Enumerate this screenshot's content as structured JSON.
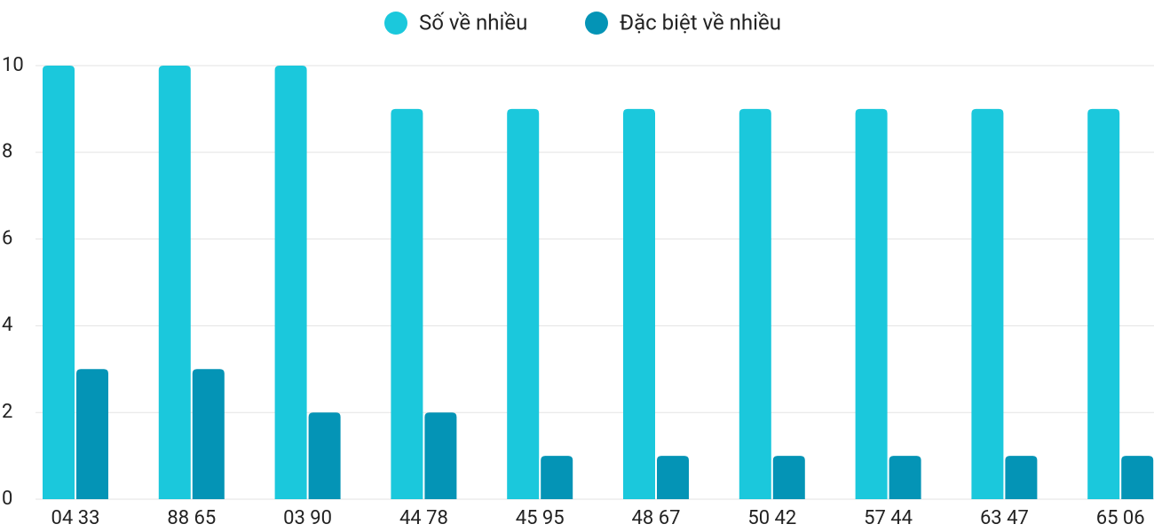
{
  "chart_data": {
    "type": "bar",
    "categories": [
      "04 33",
      "88 65",
      "03 90",
      "44 78",
      "45 95",
      "48 67",
      "50 42",
      "57 44",
      "63 47",
      "65 06"
    ],
    "series": [
      {
        "name": "Số về nhiều",
        "color": "#1bc8dc",
        "values": [
          10,
          10,
          10,
          9,
          9,
          9,
          9,
          9,
          9,
          9
        ]
      },
      {
        "name": "Đặc biệt về nhiều",
        "color": "#0494b6",
        "values": [
          3,
          3,
          2,
          2,
          1,
          1,
          1,
          1,
          1,
          1
        ]
      }
    ],
    "ylim": [
      0,
      10
    ],
    "yticks": [
      0,
      2,
      4,
      6,
      8,
      10
    ],
    "grid": true,
    "legend": "top"
  }
}
